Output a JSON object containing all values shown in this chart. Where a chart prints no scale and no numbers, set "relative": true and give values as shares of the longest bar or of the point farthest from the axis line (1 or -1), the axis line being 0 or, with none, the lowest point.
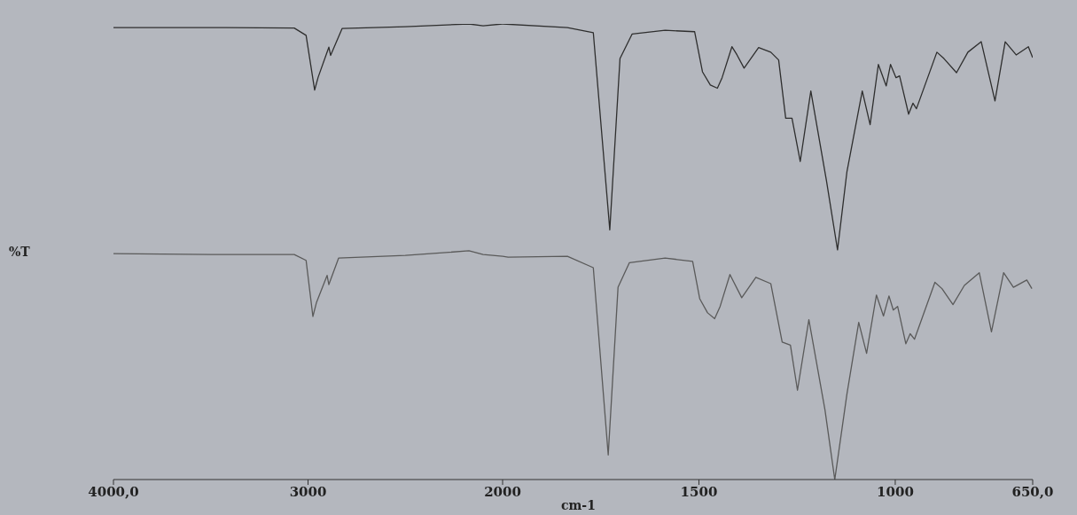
{
  "chart_data": [
    {
      "type": "line",
      "relative": true,
      "ylabel": "%T",
      "xlim": [
        4000,
        2000
      ],
      "xticks": [
        {
          "value": 4000,
          "label": "4000,0"
        },
        3000,
        2000
      ],
      "tick_labels": "x",
      "series": [
        {
          "color": "#2e2e2e",
          "x": [
            4000,
            3500,
            3071,
            3010,
            2966,
            2948,
            2893,
            2884,
            2825,
            2500,
            2173,
            2100,
            2000
          ],
          "values": [
            0.992,
            0.992,
            0.991,
            0.975,
            0.855,
            0.883,
            0.949,
            0.931,
            0.99,
            0.994,
            1.0,
            0.996,
            1.0
          ]
        },
        {
          "color": "#5a5a5a",
          "x": [
            4000,
            3500,
            3071,
            3010,
            2975,
            2957,
            2902,
            2893,
            2843,
            2500,
            2173,
            2100,
            2000
          ],
          "values": [
            0.496,
            0.494,
            0.494,
            0.481,
            0.358,
            0.388,
            0.448,
            0.428,
            0.486,
            0.492,
            0.502,
            0.494,
            0.49
          ]
        }
      ]
    },
    {
      "type": "line",
      "relative": true,
      "xlabel": "cm-1",
      "xlim": [
        2000,
        650
      ],
      "xticks": [
        1500,
        1000,
        {
          "value": 650,
          "label": "650,0"
        }
      ],
      "tick_labels": "x",
      "series": [
        {
          "color": "#2e2e2e",
          "x": [
            2000,
            1835,
            1769,
            1727,
            1701,
            1670,
            1586,
            1511,
            1491,
            1471,
            1453,
            1441,
            1416,
            1403,
            1385,
            1348,
            1317,
            1297,
            1279,
            1263,
            1242,
            1215,
            1175,
            1147,
            1123,
            1084,
            1064,
            1043,
            1023,
            1012,
            998,
            989,
            966,
            955,
            946,
            894,
            876,
            844,
            815,
            781,
            746,
            720,
            692,
            661,
            650
          ],
          "values": [
            1.0,
            0.992,
            0.981,
            0.548,
            0.924,
            0.978,
            0.986,
            0.983,
            0.895,
            0.866,
            0.859,
            0.882,
            0.95,
            0.932,
            0.903,
            0.948,
            0.938,
            0.921,
            0.793,
            0.793,
            0.698,
            0.853,
            0.655,
            0.504,
            0.676,
            0.853,
            0.779,
            0.911,
            0.864,
            0.911,
            0.882,
            0.886,
            0.802,
            0.826,
            0.814,
            0.938,
            0.924,
            0.893,
            0.938,
            0.961,
            0.831,
            0.961,
            0.932,
            0.95,
            0.926
          ]
        },
        {
          "color": "#5a5a5a",
          "x": [
            2000,
            1986,
            1835,
            1769,
            1731,
            1706,
            1677,
            1586,
            1516,
            1498,
            1478,
            1460,
            1446,
            1421,
            1391,
            1355,
            1317,
            1288,
            1267,
            1249,
            1220,
            1179,
            1154,
            1123,
            1093,
            1073,
            1048,
            1030,
            1016,
            1005,
            994,
            973,
            962,
            951,
            899,
            881,
            853,
            824,
            786,
            755,
            724,
            699,
            665,
            652
          ],
          "values": [
            0.49,
            0.488,
            0.49,
            0.465,
            0.054,
            0.422,
            0.476,
            0.486,
            0.479,
            0.397,
            0.366,
            0.353,
            0.38,
            0.45,
            0.399,
            0.444,
            0.43,
            0.302,
            0.295,
            0.196,
            0.351,
            0.153,
            0,
            0.188,
            0.345,
            0.277,
            0.405,
            0.359,
            0.403,
            0.372,
            0.38,
            0.298,
            0.32,
            0.308,
            0.433,
            0.419,
            0.384,
            0.426,
            0.454,
            0.324,
            0.454,
            0.422,
            0.438,
            0.419
          ]
        }
      ]
    }
  ]
}
